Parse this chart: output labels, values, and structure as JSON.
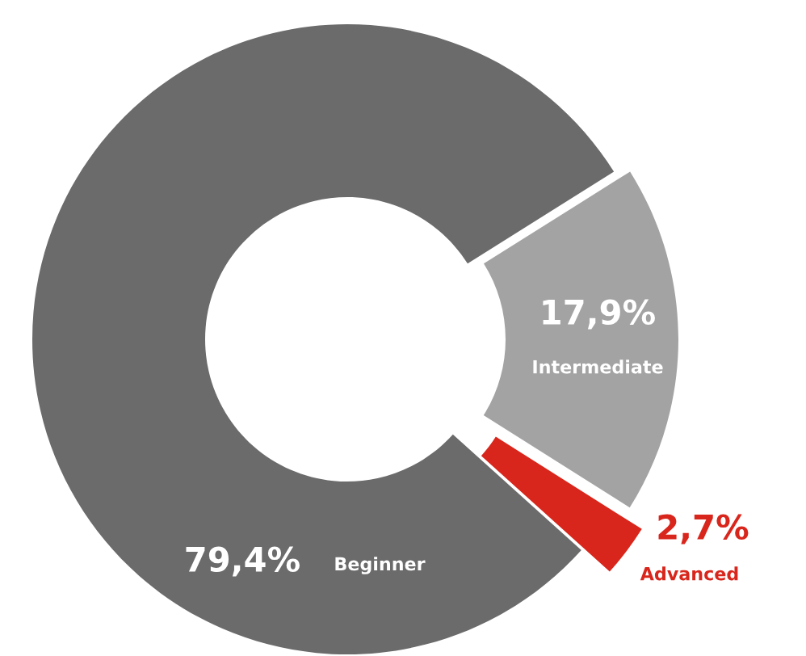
{
  "chart_data": {
    "type": "donut",
    "categories": [
      "Beginner",
      "Intermediate",
      "Advanced"
    ],
    "values": [
      79.4,
      17.9,
      2.7
    ],
    "colors": [
      "#6b6b6b",
      "#a3a3a3",
      "#d9261c"
    ],
    "value_labels": [
      "79,4%",
      "17,9%",
      "2,7%"
    ],
    "legend": false
  }
}
